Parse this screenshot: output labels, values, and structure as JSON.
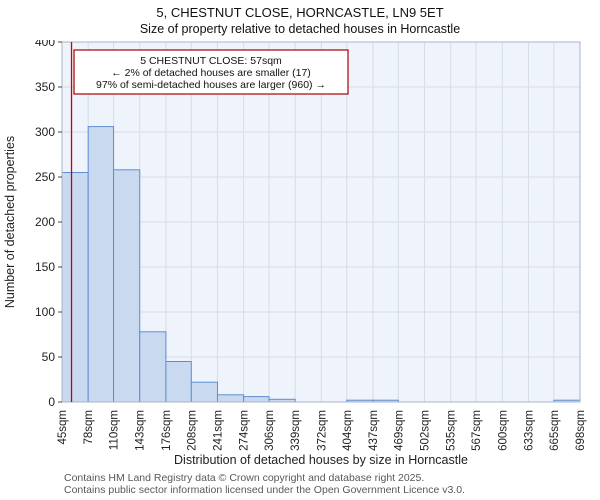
{
  "title": "5, CHESTNUT CLOSE, HORNCASTLE, LN9 5ET",
  "subtitle": "Size of property relative to detached houses in Horncastle",
  "footer": {
    "line1": "Contains HM Land Registry data © Crown copyright and database right 2025.",
    "line2": "Contains public sector information licensed under the Open Government Licence v3.0."
  },
  "chart_data": {
    "type": "bar",
    "title": "5, CHESTNUT CLOSE, HORNCASTLE, LN9 5ET",
    "subtitle": "Size of property relative to detached houses in Horncastle",
    "xlabel": "Distribution of detached houses by size in Horncastle",
    "ylabel": "Number of detached properties",
    "ylim": [
      0,
      400
    ],
    "ytick_step": 50,
    "grid": true,
    "bin_edges": [
      45,
      78,
      110,
      143,
      176,
      208,
      241,
      274,
      306,
      339,
      372,
      404,
      437,
      469,
      502,
      535,
      567,
      600,
      633,
      665,
      698
    ],
    "tick_labels": [
      "45sqm",
      "78sqm",
      "110sqm",
      "143sqm",
      "176sqm",
      "208sqm",
      "241sqm",
      "274sqm",
      "306sqm",
      "339sqm",
      "372sqm",
      "404sqm",
      "437sqm",
      "469sqm",
      "502sqm",
      "535sqm",
      "567sqm",
      "600sqm",
      "633sqm",
      "665sqm",
      "698sqm"
    ],
    "values": [
      255,
      306,
      258,
      78,
      45,
      22,
      8,
      6,
      3,
      0,
      0,
      2,
      2,
      0,
      0,
      0,
      0,
      0,
      0,
      2
    ],
    "marker": {
      "value": 57,
      "label": "5 CHESTNUT CLOSE: 57sqm",
      "color": "#cc0000"
    },
    "annotation": {
      "lines": [
        "5 CHESTNUT CLOSE: 57sqm",
        "← 2% of detached houses are smaller (17)",
        "97% of semi-detached houses are larger (960) →"
      ],
      "border_color": "#aa0000",
      "text_color": "#111111"
    },
    "colors": {
      "bar_fill": "#c9d9f0",
      "bar_stroke": "#5f8dd3",
      "grid": "#d7dce6",
      "plot_bg": "#eff3fb",
      "plot_border": "#aab4c4",
      "tick_text": "#222222"
    }
  }
}
